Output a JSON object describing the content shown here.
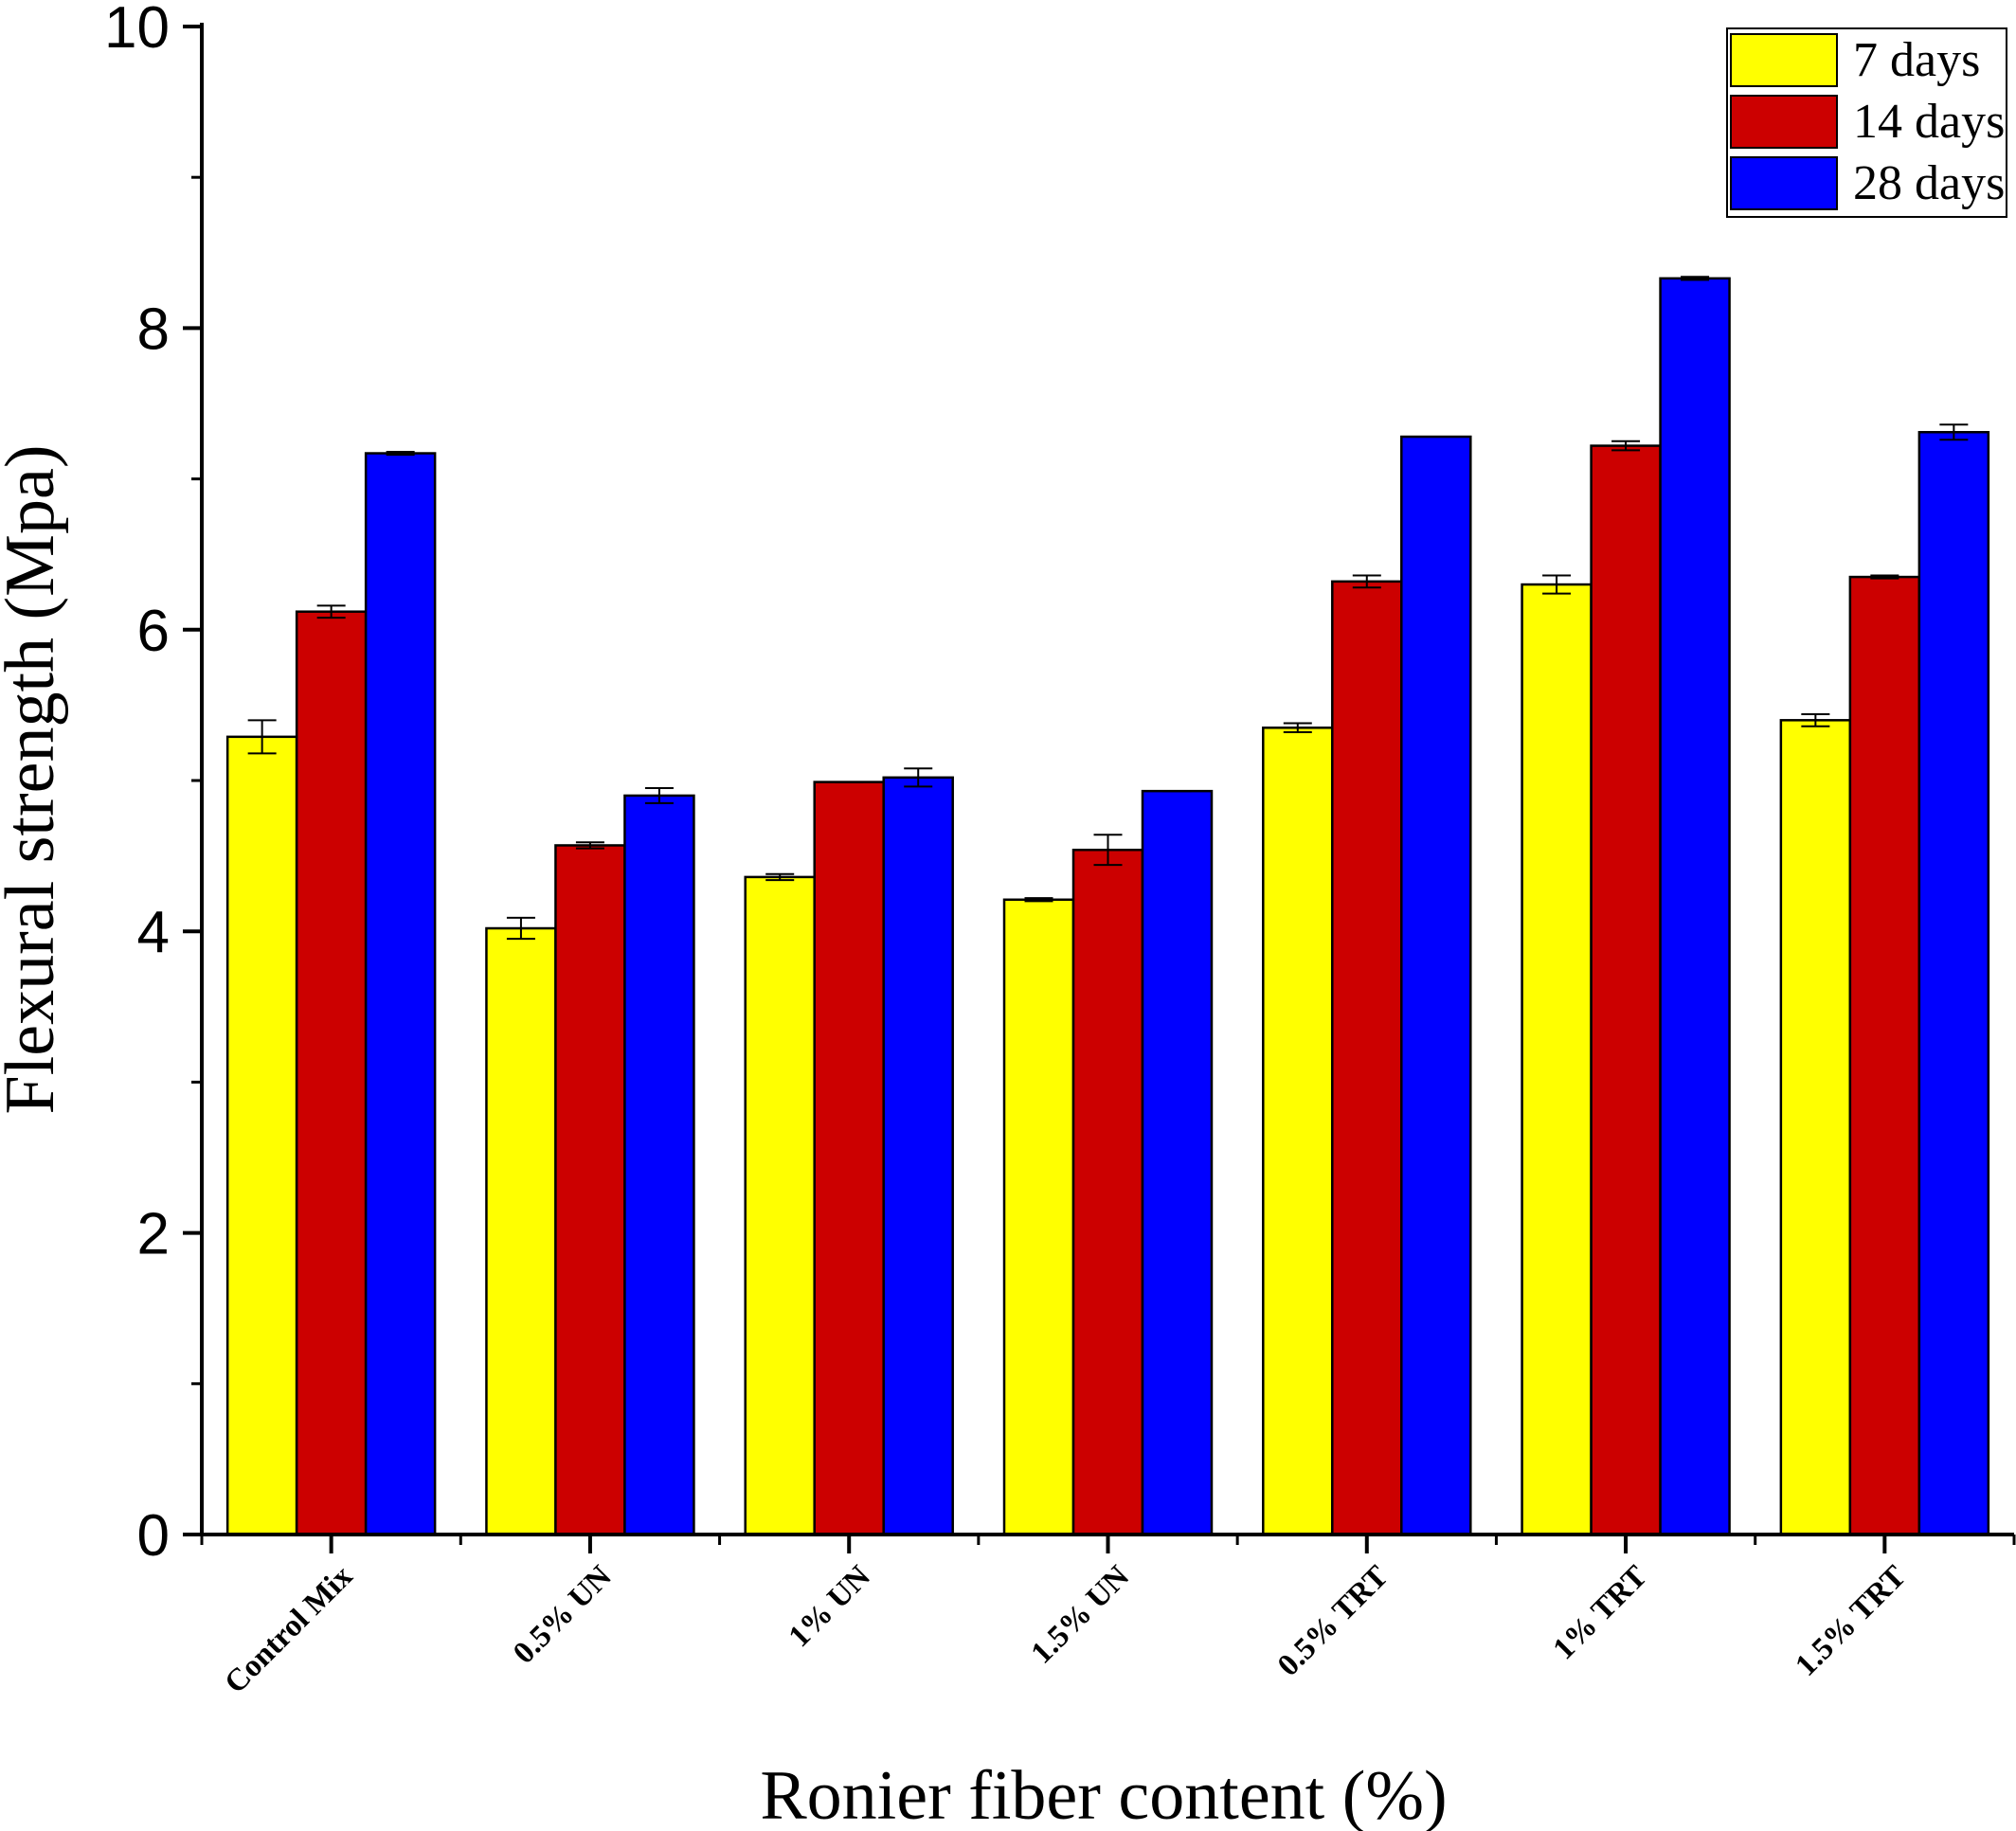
{
  "chart_data": {
    "type": "bar",
    "xlabel": "Ronier fiber content (%)",
    "ylabel": "Flexural strength (Mpa)",
    "ylim": [
      0,
      10
    ],
    "yticks": [
      0,
      2,
      4,
      6,
      8,
      10
    ],
    "yticks_minor": [
      1,
      3,
      5,
      7,
      9
    ],
    "grid": false,
    "legend_position": "top-right",
    "categories": [
      "Control Mix",
      "0.5% UN",
      "1% UN",
      "1.5% UN",
      "0.5% TRT",
      "1% TRT",
      "1.5% TRT"
    ],
    "series": [
      {
        "name": "7 days",
        "color": "#ffff00",
        "values": [
          5.29,
          4.02,
          4.36,
          4.21,
          5.35,
          6.3,
          5.4
        ],
        "errors": [
          0.11,
          0.07,
          0.02,
          0.01,
          0.03,
          0.06,
          0.04
        ]
      },
      {
        "name": "14 days",
        "color": "#cc0000",
        "values": [
          6.12,
          4.57,
          4.99,
          4.54,
          6.32,
          7.22,
          6.35
        ],
        "errors": [
          0.04,
          0.02,
          0.0,
          0.1,
          0.04,
          0.03,
          0.01
        ]
      },
      {
        "name": "28 days",
        "color": "#0000ff",
        "values": [
          7.17,
          4.9,
          5.02,
          4.93,
          7.28,
          8.33,
          7.31
        ],
        "errors": [
          0.01,
          0.05,
          0.06,
          0.0,
          0.0,
          0.01,
          0.05
        ]
      }
    ]
  }
}
